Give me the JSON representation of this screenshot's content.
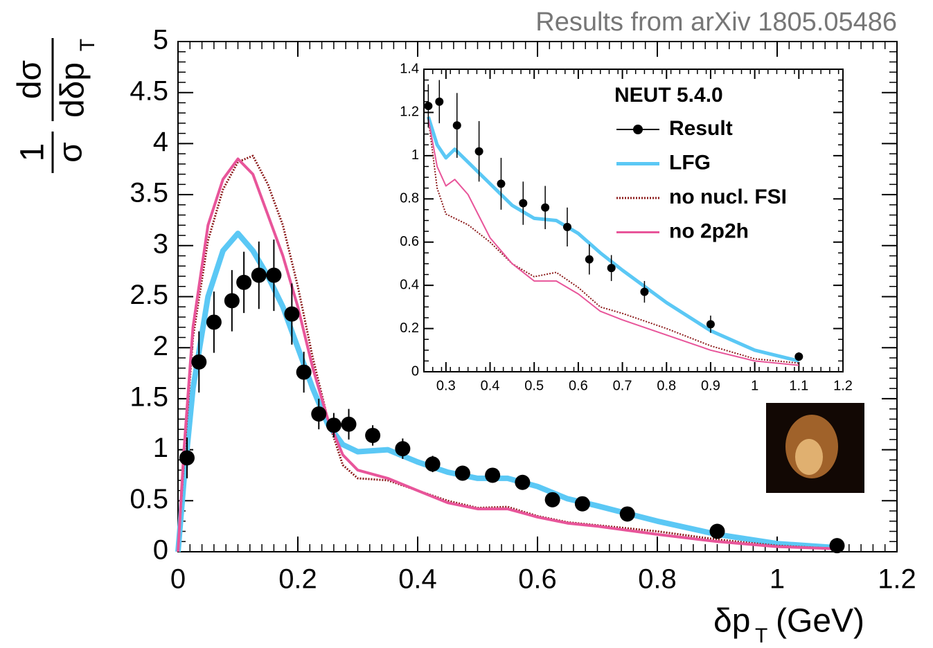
{
  "chart_data": [
    {
      "type": "line",
      "title": "Results from  arXiv 1805.05486",
      "xlabel": {
        "main": "δp",
        "subscript": "T",
        "unit": "(GeV)"
      },
      "ylabel": {
        "numerator1": "1",
        "denominator1": "σ",
        "numerator2": "dσ",
        "denominator2": "dδp",
        "subscript": "T"
      },
      "xlim": [
        0,
        1.2
      ],
      "ylim": [
        0,
        5
      ],
      "xticks": [
        0,
        0.2,
        0.4,
        0.6,
        0.8,
        1,
        1.2
      ],
      "yticks": [
        0,
        0.5,
        1,
        1.5,
        2,
        2.5,
        3,
        3.5,
        4,
        4.5,
        5
      ],
      "series": [
        {
          "color": "#5bc8f5",
          "style": "line",
          "x": [
            0,
            0.01,
            0.025,
            0.05,
            0.075,
            0.1,
            0.125,
            0.15,
            0.175,
            0.2,
            0.225,
            0.25,
            0.275,
            0.3,
            0.35,
            0.4,
            0.45,
            0.5,
            0.55,
            0.6,
            0.65,
            0.7,
            0.8,
            0.9,
            1.0,
            1.1
          ],
          "values": [
            0,
            0.7,
            1.6,
            2.5,
            2.95,
            3.12,
            2.95,
            2.7,
            2.4,
            2.0,
            1.6,
            1.25,
            1.05,
            0.98,
            1.0,
            0.88,
            0.78,
            0.72,
            0.72,
            0.64,
            0.52,
            0.45,
            0.3,
            0.17,
            0.08,
            0.04
          ]
        },
        {
          "color": "#8b1a1a",
          "style": "dotted",
          "x": [
            0,
            0.01,
            0.025,
            0.05,
            0.075,
            0.1,
            0.125,
            0.15,
            0.175,
            0.2,
            0.225,
            0.25,
            0.275,
            0.3,
            0.35,
            0.4,
            0.45,
            0.5,
            0.55,
            0.6,
            0.65,
            0.7,
            0.8,
            0.9,
            1.0,
            1.1
          ],
          "values": [
            0,
            0.9,
            2.1,
            3.05,
            3.55,
            3.82,
            3.88,
            3.6,
            3.2,
            2.6,
            1.9,
            1.3,
            0.85,
            0.72,
            0.7,
            0.6,
            0.5,
            0.43,
            0.44,
            0.35,
            0.29,
            0.26,
            0.2,
            0.12,
            0.06,
            0.03
          ]
        },
        {
          "color": "#e8559a",
          "style": "line",
          "x": [
            0,
            0.01,
            0.025,
            0.05,
            0.075,
            0.1,
            0.125,
            0.15,
            0.175,
            0.2,
            0.225,
            0.25,
            0.275,
            0.3,
            0.35,
            0.4,
            0.45,
            0.5,
            0.55,
            0.6,
            0.65,
            0.7,
            0.8,
            0.9,
            1.0,
            1.1
          ],
          "values": [
            0,
            1.0,
            2.2,
            3.2,
            3.65,
            3.85,
            3.7,
            3.3,
            2.9,
            2.4,
            1.8,
            1.3,
            0.95,
            0.8,
            0.72,
            0.6,
            0.48,
            0.42,
            0.42,
            0.34,
            0.28,
            0.25,
            0.17,
            0.1,
            0.05,
            0.03
          ]
        },
        {
          "color": "#000000",
          "style": "points",
          "x": [
            0.015,
            0.035,
            0.06,
            0.09,
            0.11,
            0.135,
            0.16,
            0.19,
            0.21,
            0.235,
            0.26,
            0.285,
            0.325,
            0.375,
            0.425,
            0.475,
            0.525,
            0.575,
            0.625,
            0.675,
            0.75,
            0.9,
            1.1
          ],
          "values": [
            0.92,
            1.86,
            2.25,
            2.46,
            2.64,
            2.71,
            2.71,
            2.33,
            1.76,
            1.35,
            1.24,
            1.25,
            1.14,
            1.01,
            0.86,
            0.77,
            0.75,
            0.68,
            0.51,
            0.47,
            0.37,
            0.2,
            0.06
          ],
          "errors": [
            0.2,
            0.3,
            0.3,
            0.3,
            0.3,
            0.33,
            0.35,
            0.3,
            0.2,
            0.15,
            0.12,
            0.15,
            0.1,
            0.1,
            0.08,
            0.07,
            0.07,
            0.06,
            0.05,
            0.04,
            0.04,
            0.03,
            0.02
          ]
        }
      ]
    },
    {
      "type": "line",
      "legend_title": "NEUT 5.4.0",
      "xlim": [
        0.25,
        1.2
      ],
      "ylim": [
        0,
        1.4
      ],
      "xticks": [
        0.3,
        0.4,
        0.5,
        0.6,
        0.7,
        0.8,
        0.9,
        1,
        1.1,
        1.2
      ],
      "yticks": [
        0,
        0.2,
        0.4,
        0.6,
        0.8,
        1,
        1.2,
        1.4
      ],
      "series": [
        {
          "name": "Result",
          "color": "#000000",
          "style": "points",
          "x": [
            0.26,
            0.285,
            0.325,
            0.375,
            0.425,
            0.475,
            0.525,
            0.575,
            0.625,
            0.675,
            0.75,
            0.9,
            1.1
          ],
          "values": [
            1.23,
            1.25,
            1.14,
            1.02,
            0.87,
            0.78,
            0.76,
            0.67,
            0.52,
            0.48,
            0.37,
            0.22,
            0.07
          ],
          "errors": [
            0.1,
            0.1,
            0.15,
            0.14,
            0.12,
            0.1,
            0.1,
            0.09,
            0.07,
            0.06,
            0.05,
            0.04,
            0.02
          ]
        },
        {
          "name": "LFG",
          "color": "#5bc8f5",
          "style": "line",
          "x": [
            0.26,
            0.28,
            0.3,
            0.32,
            0.35,
            0.4,
            0.45,
            0.5,
            0.55,
            0.6,
            0.65,
            0.7,
            0.8,
            0.9,
            1.0,
            1.1
          ],
          "values": [
            1.18,
            1.05,
            0.99,
            1.03,
            0.97,
            0.87,
            0.77,
            0.71,
            0.7,
            0.64,
            0.55,
            0.47,
            0.32,
            0.19,
            0.1,
            0.05
          ]
        },
        {
          "name": "no nucl. FSI",
          "color": "#8b1a1a",
          "style": "dotted",
          "x": [
            0.26,
            0.28,
            0.3,
            0.32,
            0.35,
            0.4,
            0.45,
            0.5,
            0.55,
            0.6,
            0.65,
            0.7,
            0.8,
            0.9,
            1.0,
            1.1
          ],
          "values": [
            1.17,
            0.85,
            0.73,
            0.71,
            0.68,
            0.6,
            0.5,
            0.44,
            0.46,
            0.39,
            0.3,
            0.27,
            0.2,
            0.12,
            0.06,
            0.04
          ]
        },
        {
          "name": "no 2p2h",
          "color": "#e8559a",
          "style": "line",
          "x": [
            0.26,
            0.28,
            0.3,
            0.32,
            0.35,
            0.4,
            0.45,
            0.5,
            0.55,
            0.6,
            0.65,
            0.7,
            0.8,
            0.9,
            1.0,
            1.1
          ],
          "values": [
            1.17,
            0.95,
            0.86,
            0.89,
            0.82,
            0.62,
            0.5,
            0.42,
            0.42,
            0.36,
            0.28,
            0.24,
            0.17,
            0.1,
            0.05,
            0.03
          ]
        }
      ]
    }
  ]
}
